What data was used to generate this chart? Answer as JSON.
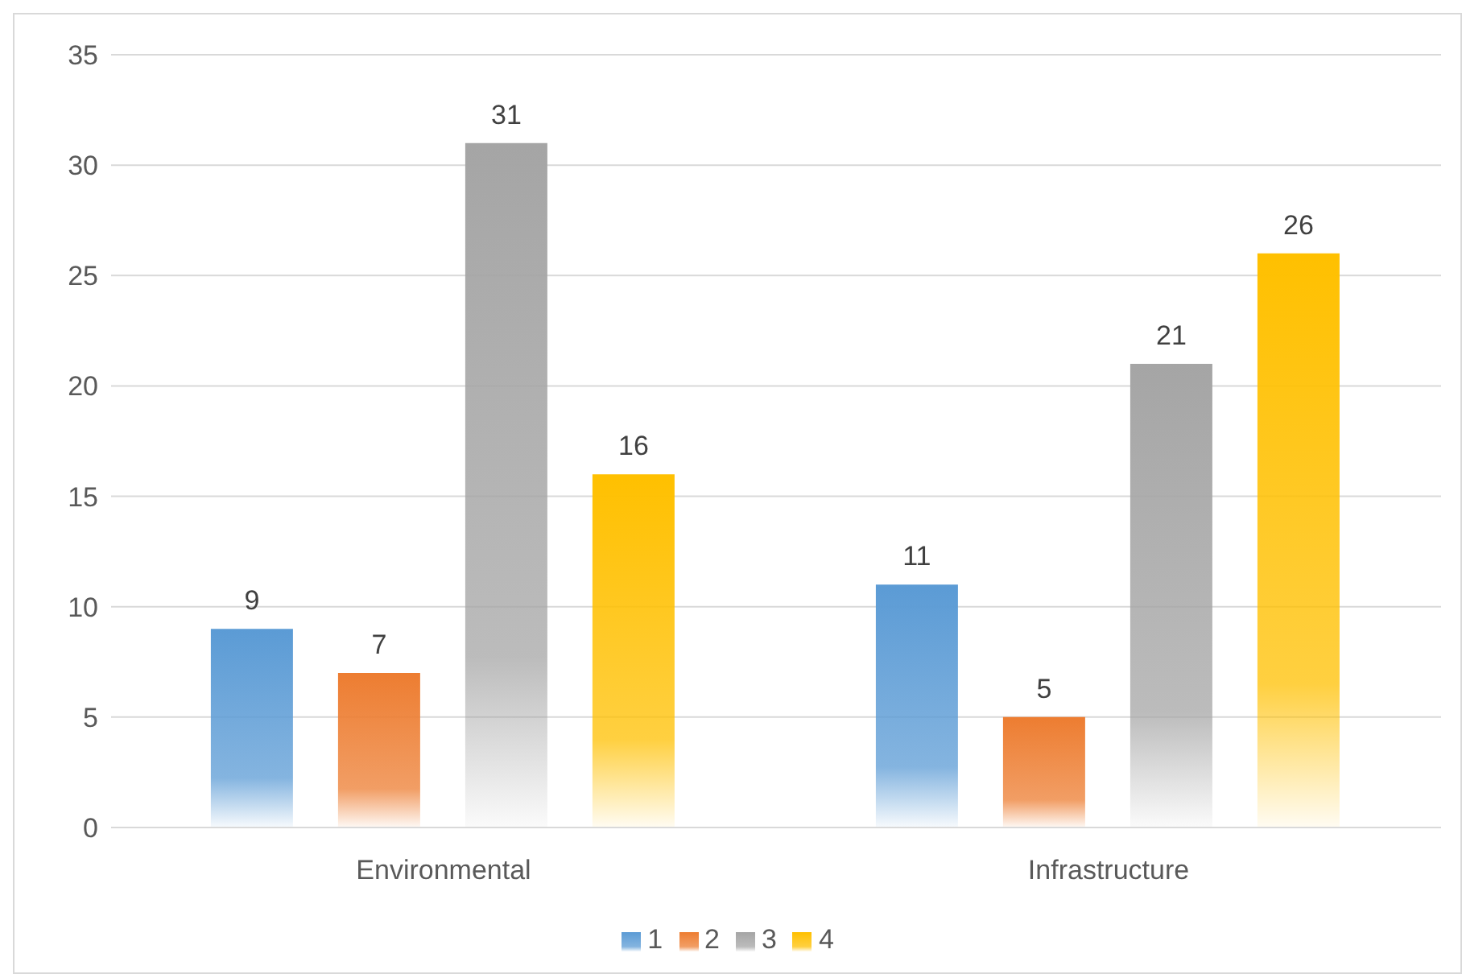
{
  "chart_data": {
    "type": "bar",
    "categories": [
      "Environmental",
      "Infrastructure"
    ],
    "series": [
      {
        "name": "1",
        "color": "#5b9bd5",
        "values": [
          9,
          11
        ]
      },
      {
        "name": "2",
        "color": "#ed7d31",
        "values": [
          7,
          5
        ]
      },
      {
        "name": "3",
        "color": "#a5a5a5",
        "values": [
          31,
          21
        ]
      },
      {
        "name": "4",
        "color": "#ffc000",
        "values": [
          16,
          26
        ]
      }
    ],
    "ylim": [
      0,
      35
    ],
    "yticks": [
      0,
      5,
      10,
      15,
      20,
      25,
      30,
      35
    ],
    "grid": "y",
    "legend": "bottom",
    "data_labels": true
  }
}
